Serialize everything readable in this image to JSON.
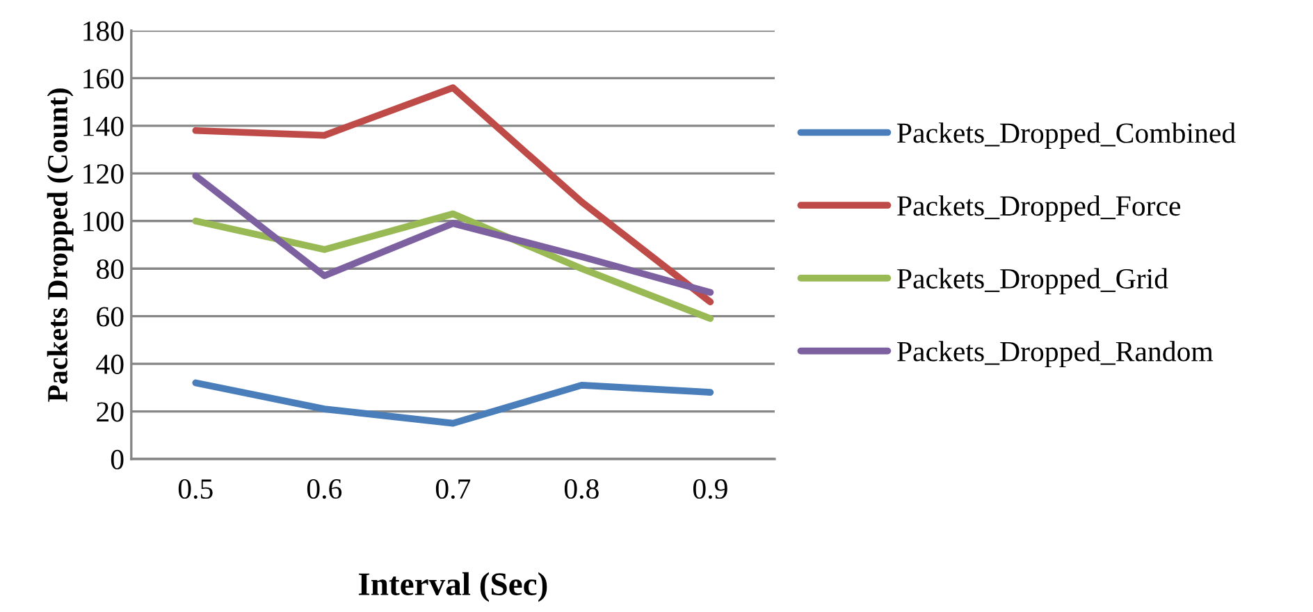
{
  "chart_data": {
    "type": "line",
    "xlabel": "Interval (Sec)",
    "ylabel": "Packets Dropped (Count)",
    "categories": [
      "0.5",
      "0.6",
      "0.7",
      "0.8",
      "0.9"
    ],
    "series": [
      {
        "name": "Packets_Dropped_Combined",
        "color": "#4a7ebb",
        "values": [
          32,
          21,
          15,
          31,
          28
        ]
      },
      {
        "name": "Packets_Dropped_Force",
        "color": "#be4b48",
        "values": [
          138,
          136,
          156,
          108,
          66
        ]
      },
      {
        "name": "Packets_Dropped_Grid",
        "color": "#98b954",
        "values": [
          100,
          88,
          103,
          80,
          59
        ]
      },
      {
        "name": "Packets_Dropped_Random",
        "color": "#7d60a0",
        "values": [
          119,
          77,
          99,
          85,
          70
        ]
      }
    ],
    "ylim": [
      0,
      180
    ],
    "yticks": [
      0,
      20,
      40,
      60,
      80,
      100,
      120,
      140,
      160,
      180
    ],
    "grid": "y",
    "legend": "right",
    "marker": "none",
    "line_style": "solid"
  }
}
